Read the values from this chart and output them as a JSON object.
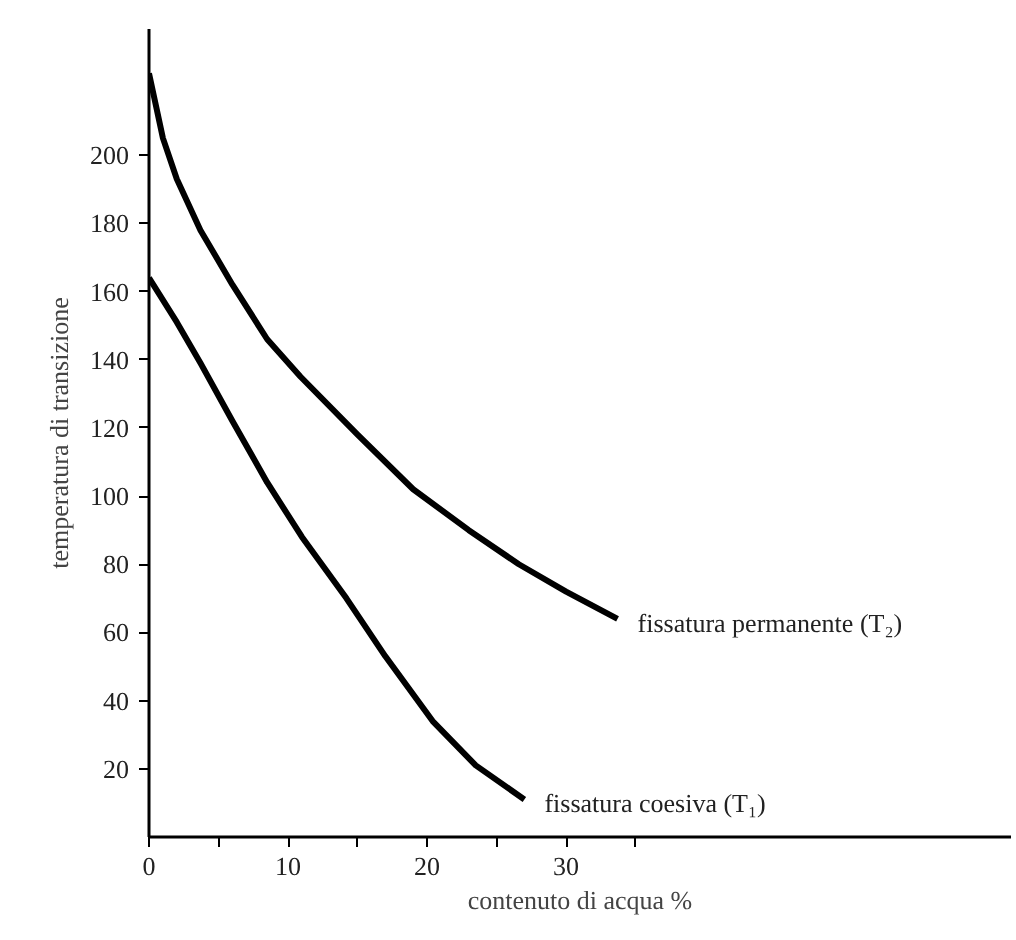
{
  "chart_data": {
    "type": "line",
    "xlabel": "contenuto di acqua %",
    "ylabel": "temperatura di transizione",
    "xlim": [
      0,
      62
    ],
    "ylim": [
      0,
      237
    ],
    "xticks": [
      0,
      {
        "value": 5,
        "label": null
      },
      10,
      {
        "value": 15,
        "label": null
      },
      20,
      {
        "value": 25,
        "label": null
      },
      30,
      {
        "value": 35,
        "label": null
      }
    ],
    "yticks": [
      20,
      40,
      60,
      80,
      100,
      120,
      140,
      160,
      180,
      200
    ],
    "grid": false,
    "marker": "none",
    "line_style": "solid",
    "series": [
      {
        "name": "fissatura permanente (T₂)",
        "color": "#000000",
        "x": [
          0,
          1,
          2,
          3.7,
          6,
          8.5,
          10.9,
          15,
          19,
          23,
          26.6,
          30,
          33.7
        ],
        "values": [
          224,
          205,
          193,
          178,
          162,
          146,
          135,
          118,
          102,
          90,
          80,
          72,
          64
        ]
      },
      {
        "name": "fissatura coesiva (T₁)",
        "color": "#000000",
        "x": [
          0,
          2,
          3.7,
          6,
          8.5,
          11,
          14.2,
          17,
          20.4,
          23.5,
          27
        ],
        "values": [
          164,
          151,
          139,
          122,
          104,
          88,
          70,
          53,
          34,
          21,
          11
        ]
      }
    ]
  }
}
